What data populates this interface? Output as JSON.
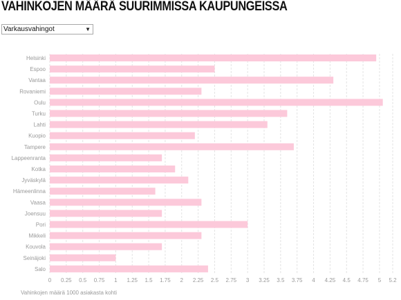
{
  "header": {
    "title": "VAHINKOJEN MÄÄRÄ SUURIMMISSA KAUPUNGEISSA"
  },
  "filter": {
    "selected": "Varkausvahingot"
  },
  "colors": {
    "bar": "#fcc9da",
    "grid": "#e3e3e3",
    "text": "#999999"
  },
  "chart_data": {
    "type": "bar",
    "orientation": "horizontal",
    "categories": [
      "Helsinki",
      "Espoo",
      "Vantaa",
      "Rovaniemi",
      "Oulu",
      "Turku",
      "Lahti",
      "Kuopio",
      "Tampere",
      "Lappeenranta",
      "Kotka",
      "Jyväskylä",
      "Hämeenlinna",
      "Vaasa",
      "Joensuu",
      "Pori",
      "Mikkeli",
      "Kouvola",
      "Seinäjoki",
      "Salo"
    ],
    "values": [
      4.95,
      2.5,
      4.3,
      2.3,
      5.05,
      3.6,
      3.3,
      2.2,
      3.7,
      1.7,
      1.9,
      2.1,
      1.6,
      2.3,
      1.7,
      3.0,
      2.3,
      1.7,
      1.0,
      2.4
    ],
    "x_ticks": [
      "0",
      "0.25",
      "0.5",
      "0.75",
      "1",
      "1.25",
      "1.5",
      "1.75",
      "2",
      "2.25",
      "2.5",
      "2.75",
      "3",
      "3.25",
      "3.5",
      "3.75",
      "4",
      "4.25",
      "4.5",
      "4.75",
      "5",
      "5.2"
    ],
    "xlim": [
      0,
      5.2
    ],
    "xlabel": "Vahinkojen määrä 1000 asiakasta kohti",
    "grid": true
  }
}
